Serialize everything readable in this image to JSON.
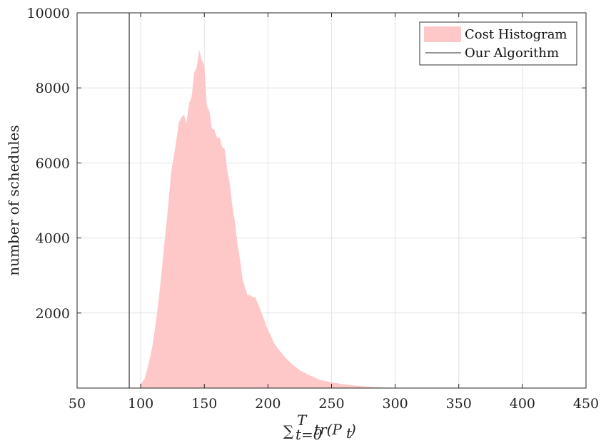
{
  "chart_data": {
    "type": "area",
    "xlabel": "∑_{t=0}^{T} tr(P_t)",
    "ylabel": "number of schedules",
    "xlim": [
      50,
      450
    ],
    "ylim": [
      0,
      10000
    ],
    "xticks": [
      50,
      100,
      150,
      200,
      250,
      300,
      350,
      400,
      450
    ],
    "xtick_labels": [
      "50",
      "100",
      "150",
      "200",
      "250",
      "300",
      "350",
      "400",
      "450"
    ],
    "yticks": [
      2000,
      4000,
      6000,
      8000,
      10000
    ],
    "ytick_labels": [
      "2000",
      "4000",
      "6000",
      "8000",
      "10000"
    ],
    "grid": true,
    "legend_position": "top-right",
    "series": [
      {
        "name": "Cost Histogram",
        "kind": "histogram-area",
        "color": "#ffc8c8",
        "x": [
          100,
          103,
          106,
          109,
          112,
          115,
          118,
          121,
          124,
          127,
          130,
          132,
          134,
          136,
          138,
          140,
          142,
          144,
          146,
          148,
          150,
          152,
          154,
          156,
          158,
          160,
          162,
          164,
          166,
          168,
          170,
          172,
          174,
          176,
          178,
          180,
          182,
          184,
          186,
          188,
          190,
          193,
          196,
          199,
          202,
          205,
          210,
          215,
          220,
          225,
          230,
          240,
          250,
          260,
          270,
          280,
          290,
          300
        ],
        "y": [
          100,
          250,
          600,
          1100,
          1750,
          2650,
          3600,
          4700,
          5700,
          6450,
          7000,
          7300,
          7200,
          7150,
          7500,
          7850,
          8300,
          8650,
          8900,
          8850,
          8500,
          7600,
          7300,
          7000,
          6800,
          6750,
          6600,
          6500,
          6300,
          5900,
          5400,
          4900,
          4400,
          3900,
          3400,
          2950,
          2650,
          2500,
          2450,
          2450,
          2400,
          2200,
          1900,
          1650,
          1400,
          1200,
          950,
          780,
          600,
          480,
          380,
          230,
          150,
          100,
          60,
          35,
          15,
          5
        ]
      },
      {
        "name": "Our Algorithm",
        "kind": "vertical-line",
        "color": "#555555",
        "x": 91
      }
    ]
  }
}
